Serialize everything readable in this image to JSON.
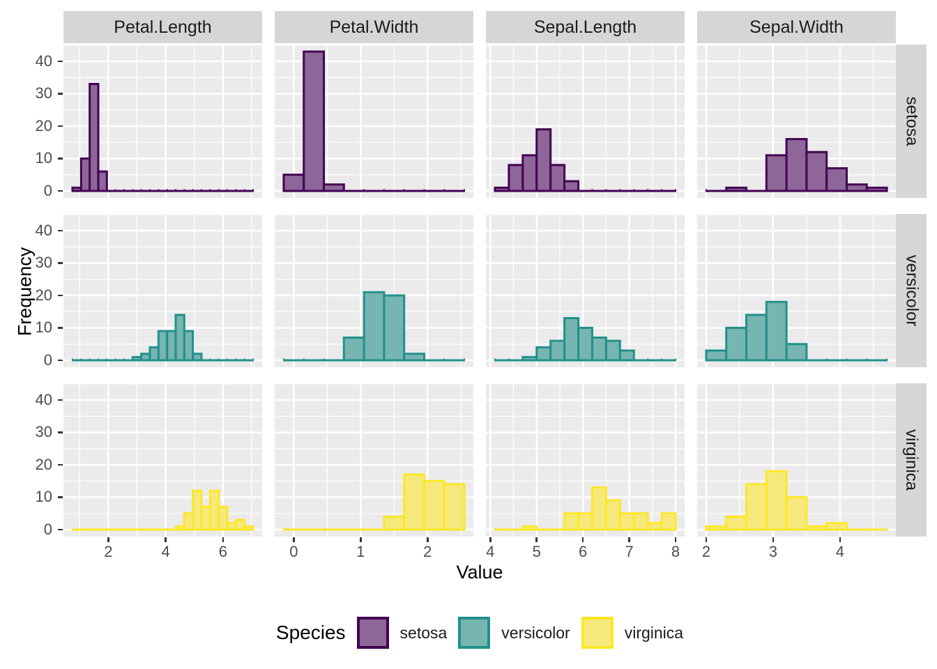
{
  "figure_title": "",
  "labels": {
    "x_title": "Value",
    "y_title": "Frequency",
    "legend_title": "Species"
  },
  "colors": {
    "background": "#ffffff",
    "panel_bg": "#ebebeb",
    "strip_bg": "#d6d6d6",
    "grid": "#ffffff",
    "tick_text": "#4d4d4d",
    "axis_tick": "#333333",
    "strip_text": "#1a1a1a"
  },
  "species": [
    {
      "name": "setosa",
      "fill": "#8C6797",
      "stroke": "#440154"
    },
    {
      "name": "versicolor",
      "fill": "#77B5B1",
      "stroke": "#21908C"
    },
    {
      "name": "virginica",
      "fill": "#F6E97C",
      "stroke": "#FDE725"
    }
  ],
  "legend": {
    "title": "Species",
    "entries": [
      {
        "label": "setosa",
        "fill": "#8C6797",
        "stroke": "#440154"
      },
      {
        "label": "versicolor",
        "fill": "#77B5B1",
        "stroke": "#21908C"
      },
      {
        "label": "virginica",
        "fill": "#F6E97C",
        "stroke": "#FDE725"
      }
    ]
  },
  "chart_data": {
    "type": "bar",
    "subtype": "faceted-histogram-grid",
    "title": "",
    "xlabel": "Value",
    "ylabel": "Frequency",
    "ylim": [
      -2.15,
      45.15
    ],
    "y_major_ticks": [
      0,
      10,
      20,
      30,
      40
    ],
    "y_minor_ticks": [
      5,
      15,
      25,
      35,
      45
    ],
    "grid": true,
    "legend_position": "bottom",
    "bin_width": 0.3,
    "columns": [
      {
        "label": "Petal.Length",
        "bin_start": 0.75,
        "bin_end": 7.05,
        "xlim": [
          0.435,
          7.365
        ],
        "major_ticks": [
          2,
          4,
          6
        ],
        "minor_ticks": [
          1,
          3,
          5,
          7
        ]
      },
      {
        "label": "Petal.Width",
        "bin_start": -0.15,
        "bin_end": 2.55,
        "xlim": [
          -0.285,
          2.685
        ],
        "major_ticks": [
          0,
          1,
          2
        ],
        "minor_ticks": [
          0.5,
          1.5,
          2.5
        ]
      },
      {
        "label": "Sepal.Length",
        "bin_start": 4.1,
        "bin_end": 8.0,
        "xlim": [
          3.905,
          8.195
        ],
        "major_ticks": [
          4,
          5,
          6,
          7,
          8
        ],
        "minor_ticks": [
          4.5,
          5.5,
          6.5,
          7.5
        ]
      },
      {
        "label": "Sepal.Width",
        "bin_start": 2.0,
        "bin_end": 4.7,
        "xlim": [
          1.865,
          4.835
        ],
        "major_ticks": [
          2,
          3,
          4
        ],
        "minor_ticks": [
          2.5,
          3.5,
          4.5
        ]
      }
    ],
    "rows": [
      {
        "label": "setosa",
        "series": [
          {
            "column": "Petal.Length",
            "first_bin": 0.75,
            "counts": [
              1,
              10,
              33,
              6
            ]
          },
          {
            "column": "Petal.Width",
            "first_bin": -0.15,
            "counts": [
              5,
              43,
              2
            ]
          },
          {
            "column": "Sepal.Length",
            "first_bin": 4.1,
            "counts": [
              1,
              8,
              11,
              19,
              8,
              3
            ]
          },
          {
            "column": "Sepal.Width",
            "first_bin": 2.3,
            "counts": [
              1,
              0,
              11,
              16,
              12,
              7,
              2,
              1
            ]
          }
        ]
      },
      {
        "label": "versicolor",
        "series": [
          {
            "column": "Petal.Length",
            "first_bin": 2.85,
            "counts": [
              1,
              2,
              4,
              9,
              9,
              14,
              9,
              2
            ]
          },
          {
            "column": "Petal.Width",
            "first_bin": 0.75,
            "counts": [
              7,
              21,
              20,
              2
            ]
          },
          {
            "column": "Sepal.Length",
            "first_bin": 4.7,
            "counts": [
              1,
              4,
              6,
              13,
              10,
              7,
              6,
              3
            ]
          },
          {
            "column": "Sepal.Width",
            "first_bin": 2.0,
            "counts": [
              3,
              10,
              14,
              18,
              5
            ]
          }
        ]
      },
      {
        "label": "virginica",
        "series": [
          {
            "column": "Petal.Length",
            "first_bin": 4.35,
            "counts": [
              1,
              5,
              12,
              7,
              12,
              7,
              2,
              3,
              1
            ]
          },
          {
            "column": "Petal.Width",
            "first_bin": 1.35,
            "counts": [
              4,
              17,
              15,
              14
            ]
          },
          {
            "column": "Sepal.Length",
            "first_bin": 4.7,
            "counts": [
              1,
              0,
              0,
              5,
              5,
              13,
              9,
              5,
              5,
              2,
              5
            ]
          },
          {
            "column": "Sepal.Width",
            "first_bin": 2.0,
            "counts": [
              1,
              4,
              14,
              18,
              10,
              1,
              2
            ]
          }
        ]
      }
    ]
  }
}
